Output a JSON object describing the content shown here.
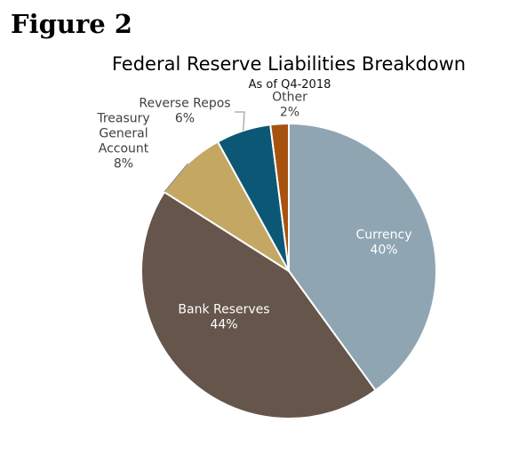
{
  "figure_label": "Figure 2",
  "chart_data": {
    "type": "pie",
    "title": "Federal Reserve Liabilities Breakdown",
    "subtitle": "As of Q4-2018",
    "start_angle_deg": 0,
    "direction": "clockwise",
    "slices": [
      {
        "key": "currency",
        "label_lines": [
          "Currency"
        ],
        "value": 40,
        "value_label": "40%",
        "color": "#8fa5b2",
        "label_position": "inside"
      },
      {
        "key": "bank-reserves",
        "label_lines": [
          "Bank Reserves"
        ],
        "value": 44,
        "value_label": "44%",
        "color": "#65554a",
        "label_position": "inside"
      },
      {
        "key": "treasury-general-account",
        "label_lines": [
          "Treasury",
          "General",
          "Account"
        ],
        "value": 8,
        "value_label": "8%",
        "color": "#c4a763",
        "label_position": "outside"
      },
      {
        "key": "reverse-repos",
        "label_lines": [
          "Reverse Repos"
        ],
        "value": 6,
        "value_label": "6%",
        "color": "#0c5776",
        "label_position": "outside"
      },
      {
        "key": "other",
        "label_lines": [
          "Other"
        ],
        "value": 2,
        "value_label": "2%",
        "color": "#a7530f",
        "label_position": "outside"
      }
    ],
    "legend": "none"
  }
}
